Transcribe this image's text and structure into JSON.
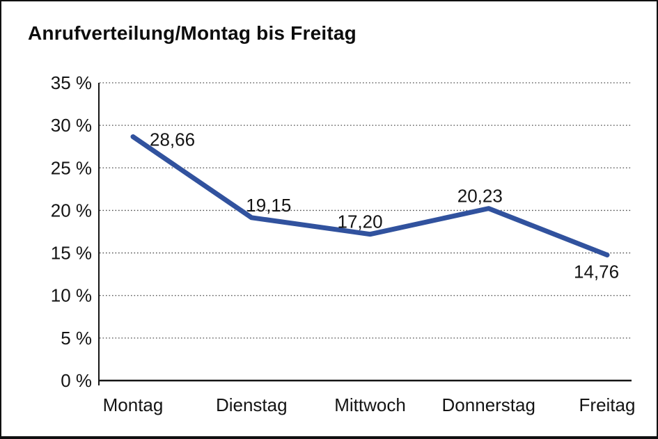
{
  "page": {
    "background": "#ffffff",
    "frame_border_color": "#101010"
  },
  "chart_data": {
    "type": "line",
    "title": "Anrufverteilung/Montag bis Freitag",
    "categories": [
      "Montag",
      "Dienstag",
      "Mittwoch",
      "Donnerstag",
      "Freitag"
    ],
    "values": [
      28.66,
      19.15,
      17.2,
      20.23,
      14.76
    ],
    "value_labels": [
      "28,66",
      "19,15",
      "17,20",
      "20,23",
      "14,76"
    ],
    "xlabel": "",
    "ylabel": "",
    "ylim": [
      0,
      35
    ],
    "y_axis": {
      "ticks": [
        {
          "label": "35 %",
          "value": 35
        },
        {
          "label": "30 %",
          "value": 30
        },
        {
          "label": "25 %",
          "value": 25
        },
        {
          "label": "20 %",
          "value": 20
        },
        {
          "label": "15 %",
          "value": 15
        },
        {
          "label": "10 %",
          "value": 10
        },
        {
          "label": "5 %",
          "value": 5
        },
        {
          "label": "0 %",
          "value": 0
        }
      ]
    },
    "grid": "horizontal-dotted",
    "legend": "none",
    "line_color": "#31529E",
    "axis_color": "#141414",
    "grid_color": "#4a4a4a",
    "text_color": "#141414"
  }
}
